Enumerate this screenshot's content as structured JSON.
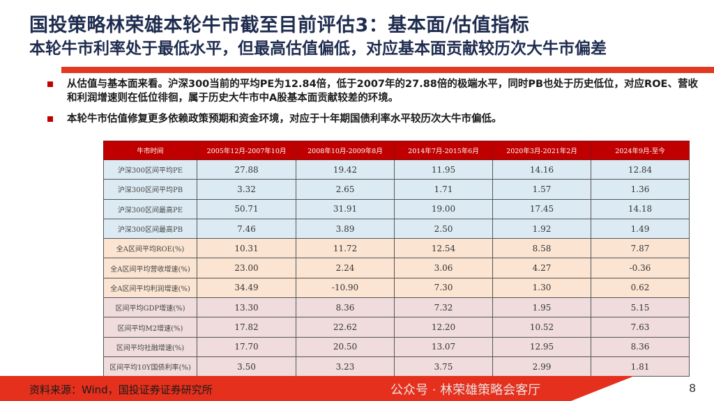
{
  "header": {
    "title": "国投策略林荣雄本轮牛市截至目前评估3：基本面/估值指标",
    "subtitle": "本轮牛市利率处于最低水平，但最高估值偏低，对应基本面贡献较历次大牛市偏差"
  },
  "bullets": [
    "从估值与基本面来看。沪深300当前的平均PE为12.84倍，低于2007年的27.88倍的极端水平，同时PB也处于历史低位，对应ROE、营收和利润增速则在低位徘徊，属于历史大牛市中A股基本面贡献较差的环境。",
    "本轮牛市估值修复更多依赖政策预期和资金环境，对应于十年期国债利率水平较历次大牛市偏低。"
  ],
  "table": {
    "headers": [
      "牛市时间",
      "2005年12月-2007年10月",
      "2008年10月-2009年8月",
      "2014年7月-2015年6月",
      "2020年3月-2021年2月",
      "2024年9月-至今"
    ],
    "rows": [
      {
        "label": "沪深300区间平均PE",
        "values": [
          "27.88",
          "19.42",
          "11.95",
          "14.16",
          "12.84"
        ]
      },
      {
        "label": "沪深300区间平均PB",
        "values": [
          "3.32",
          "2.65",
          "1.71",
          "1.57",
          "1.36"
        ]
      },
      {
        "label": "沪深300区间最高PE",
        "values": [
          "50.71",
          "31.91",
          "19.00",
          "17.45",
          "14.18"
        ]
      },
      {
        "label": "沪深300区间最高PB",
        "values": [
          "7.46",
          "3.89",
          "2.50",
          "1.92",
          "1.49"
        ]
      },
      {
        "label": "全A区间平均ROE(%)",
        "values": [
          "10.31",
          "11.72",
          "12.54",
          "8.58",
          "7.87"
        ]
      },
      {
        "label": "全A区间平均营收增速(%)",
        "values": [
          "23.00",
          "2.24",
          "3.06",
          "4.27",
          "-0.36"
        ]
      },
      {
        "label": "全A区间平均利润增速(%)",
        "values": [
          "34.49",
          "-10.90",
          "7.30",
          "1.30",
          "0.62"
        ]
      },
      {
        "label": "区间平均GDP增速(%)",
        "values": [
          "13.30",
          "8.36",
          "7.32",
          "1.95",
          "5.15"
        ]
      },
      {
        "label": "区间平均M2增速(%)",
        "values": [
          "17.82",
          "22.62",
          "12.20",
          "10.52",
          "7.63"
        ]
      },
      {
        "label": "区间平均社融增速(%)",
        "values": [
          "17.70",
          "20.50",
          "13.07",
          "12.95",
          "8.36"
        ]
      },
      {
        "label": "区间平均10Y国债利率(%)",
        "values": [
          "3.50",
          "3.23",
          "3.75",
          "2.99",
          "1.81"
        ]
      }
    ]
  },
  "footer": {
    "source": "资料来源：Wind，国投证券证券研究所",
    "page": "8"
  },
  "watermark": "公众号 · 林荣雄策略会客厅",
  "colors": {
    "title": "#1f2c4f",
    "accent": "#c00000",
    "valuation_rows": "#dcebf3",
    "fundamental_rows": "#fbe4d2",
    "macro_rows": "#f0dcdc"
  }
}
